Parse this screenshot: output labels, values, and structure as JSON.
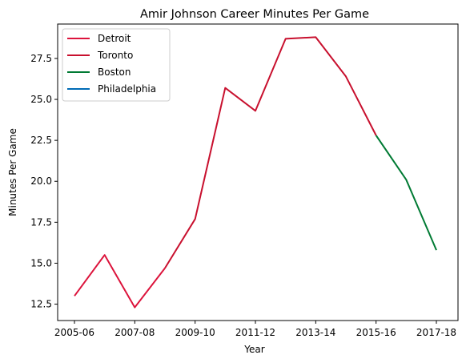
{
  "chart_data": {
    "type": "line",
    "title": "Amir Johnson Career Minutes Per Game",
    "xlabel": "Year",
    "ylabel": "Minutes Per Game",
    "x": [
      "2005-06",
      "2006-07",
      "2007-08",
      "2008-09",
      "2009-10",
      "2010-11",
      "2011-12",
      "2012-13",
      "2013-14",
      "2014-15",
      "2015-16",
      "2016-17",
      "2017-18"
    ],
    "xticks": [
      "2005-06",
      "2007-08",
      "2009-10",
      "2011-12",
      "2013-14",
      "2015-16",
      "2017-18"
    ],
    "yticks": [
      "12.5",
      "15.0",
      "17.5",
      "20.0",
      "22.5",
      "25.0",
      "27.5"
    ],
    "ylim": [
      11.5,
      29.6
    ],
    "legend_placement": "top-left",
    "series": [
      {
        "name": "Detroit",
        "color": "#DC143C",
        "x": [
          "2005-06",
          "2006-07",
          "2007-08",
          "2008-09"
        ],
        "values": [
          13.0,
          15.5,
          12.3,
          14.7
        ]
      },
      {
        "name": "Toronto",
        "color": "#C8102E",
        "x": [
          "2008-09",
          "2009-10",
          "2010-11",
          "2011-12",
          "2012-13",
          "2013-14",
          "2014-15",
          "2015-16"
        ],
        "values": [
          14.7,
          17.7,
          25.7,
          24.3,
          28.7,
          28.8,
          26.4,
          22.8
        ]
      },
      {
        "name": "Boston",
        "color": "#007A33",
        "x": [
          "2015-16",
          "2016-17",
          "2017-18"
        ],
        "values": [
          22.8,
          20.1,
          15.8
        ]
      },
      {
        "name": "Philadelphia",
        "color": "#006BB6",
        "x": [],
        "values": []
      }
    ]
  }
}
